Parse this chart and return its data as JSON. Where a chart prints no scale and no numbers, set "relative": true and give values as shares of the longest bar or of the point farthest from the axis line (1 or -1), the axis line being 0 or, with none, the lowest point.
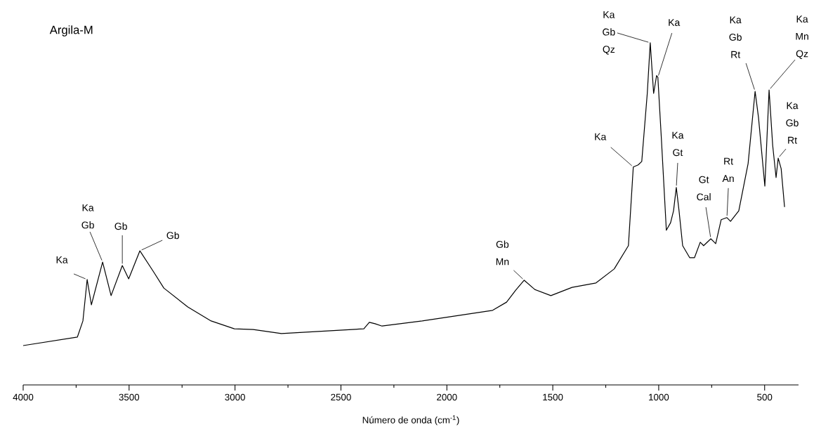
{
  "chart_data": {
    "type": "line",
    "title": "Argila-M",
    "xlabel": "Número de onda (cm$^{-1}$)",
    "relative": true,
    "tick_labels": "x",
    "color": "#000000",
    "xlim": [
      4000,
      340
    ],
    "xticks": [
      4000,
      {
        "value": 3750,
        "label": null
      },
      3500,
      {
        "value": 3250,
        "label": null
      },
      3000,
      {
        "value": 2750,
        "label": null
      },
      2500,
      {
        "value": 2250,
        "label": null
      },
      2000,
      {
        "value": 1750,
        "label": null
      },
      1500,
      {
        "value": 1250,
        "label": null
      },
      1000,
      {
        "value": 750,
        "label": null
      },
      500
    ],
    "x": [
      4000,
      3744,
      3718,
      3698,
      3678,
      3625,
      3585,
      3532,
      3502,
      3449,
      3385,
      3336,
      3223,
      3113,
      3003,
      2914,
      2804,
      2781,
      2392,
      2366,
      2339,
      2306,
      2116,
      1784,
      1718,
      1675,
      1635,
      1585,
      1509,
      1409,
      1296,
      1210,
      1143,
      1120,
      1097,
      1080,
      1054,
      1040,
      1024,
      1010,
      1004,
      987,
      964,
      944,
      930,
      917,
      904,
      887,
      854,
      831,
      804,
      788,
      754,
      731,
      705,
      678,
      661,
      622,
      578,
      545,
      529,
      499,
      479,
      462,
      446,
      436,
      422,
      406
    ],
    "values": [
      0.115,
      0.14,
      0.187,
      0.308,
      0.234,
      0.359,
      0.261,
      0.349,
      0.31,
      0.392,
      0.331,
      0.283,
      0.228,
      0.187,
      0.164,
      0.162,
      0.152,
      0.15,
      0.164,
      0.183,
      0.179,
      0.172,
      0.187,
      0.218,
      0.242,
      0.277,
      0.306,
      0.279,
      0.261,
      0.285,
      0.298,
      0.339,
      0.407,
      0.637,
      0.643,
      0.653,
      0.852,
      1.0,
      0.852,
      0.904,
      0.899,
      0.715,
      0.452,
      0.474,
      0.509,
      0.577,
      0.509,
      0.407,
      0.372,
      0.372,
      0.417,
      0.407,
      0.427,
      0.413,
      0.483,
      0.489,
      0.478,
      0.509,
      0.647,
      0.858,
      0.782,
      0.581,
      0.862,
      0.7,
      0.606,
      0.663,
      0.632,
      0.52
    ],
    "annotations": [
      {
        "text": "Ka",
        "x": 3698,
        "y": 0.308
      },
      {
        "text": "Ka Gb",
        "x": 3625,
        "y": 0.359
      },
      {
        "text": "Gb",
        "x": 3532,
        "y": 0.349
      },
      {
        "text": "Gb",
        "x": 3449,
        "y": 0.392
      },
      {
        "text": "Gb Mn",
        "x": 1635,
        "y": 0.306
      },
      {
        "text": "Ka",
        "x": 1120,
        "y": 0.637
      },
      {
        "text": "Ka Gb Qz",
        "x": 1040,
        "y": 1.0
      },
      {
        "text": "Ka",
        "x": 1004,
        "y": 0.899
      },
      {
        "text": "Ka Gt",
        "x": 917,
        "y": 0.577
      },
      {
        "text": "Gt Cal",
        "x": 754,
        "y": 0.427
      },
      {
        "text": "Rt An",
        "x": 678,
        "y": 0.489
      },
      {
        "text": "Ka Gb Rt",
        "x": 545,
        "y": 0.858
      },
      {
        "text": "Ka Mn Qz",
        "x": 479,
        "y": 0.862
      },
      {
        "text": "Ka Gb Rt",
        "x": 436,
        "y": 0.663
      }
    ]
  }
}
